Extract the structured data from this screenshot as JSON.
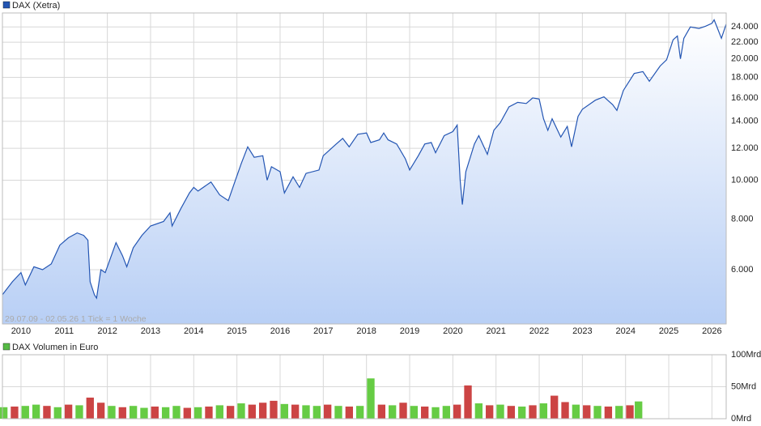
{
  "chart_data": [
    {
      "type": "line",
      "title": "DAX (Xetra)",
      "color": "#2355b3",
      "log_scale": true,
      "grid": true,
      "annotation": "29.07.09 - 02.05.26   1 Tick = 1 Woche",
      "watermark": "RIVA",
      "x": [
        2009.57,
        2009.8,
        2010.0,
        2010.1,
        2010.3,
        2010.5,
        2010.7,
        2010.9,
        2011.1,
        2011.3,
        2011.45,
        2011.55,
        2011.6,
        2011.7,
        2011.75,
        2011.85,
        2011.95,
        2012.2,
        2012.35,
        2012.45,
        2012.6,
        2012.8,
        2013.0,
        2013.3,
        2013.45,
        2013.5,
        2013.7,
        2013.9,
        2014.0,
        2014.1,
        2014.4,
        2014.6,
        2014.8,
        2014.95,
        2015.1,
        2015.25,
        2015.4,
        2015.6,
        2015.7,
        2015.8,
        2016.0,
        2016.1,
        2016.3,
        2016.45,
        2016.6,
        2016.9,
        2017.0,
        2017.3,
        2017.45,
        2017.6,
        2017.8,
        2018.0,
        2018.1,
        2018.3,
        2018.4,
        2018.5,
        2018.7,
        2018.9,
        2019.0,
        2019.2,
        2019.35,
        2019.5,
        2019.6,
        2019.8,
        2020.0,
        2020.1,
        2020.17,
        2020.22,
        2020.3,
        2020.5,
        2020.6,
        2020.8,
        2020.95,
        2021.1,
        2021.3,
        2021.5,
        2021.7,
        2021.85,
        2022.0,
        2022.1,
        2022.2,
        2022.3,
        2022.5,
        2022.65,
        2022.75,
        2022.9,
        2023.0,
        2023.3,
        2023.5,
        2023.7,
        2023.8,
        2023.95,
        2024.2,
        2024.4,
        2024.55,
        2024.8,
        2024.95,
        2025.1,
        2025.2,
        2025.27,
        2025.35,
        2025.5,
        2025.7,
        2025.85,
        2026.0,
        2026.05,
        2026.15,
        2026.22,
        2026.33
      ],
      "values": [
        5200,
        5600,
        5900,
        5500,
        6100,
        6000,
        6200,
        6900,
        7200,
        7400,
        7300,
        7100,
        5600,
        5200,
        5100,
        6000,
        5900,
        7000,
        6500,
        6100,
        6800,
        7300,
        7700,
        7900,
        8300,
        7700,
        8500,
        9300,
        9600,
        9400,
        9900,
        9200,
        8900,
        9900,
        11000,
        12100,
        11400,
        11500,
        10000,
        10800,
        10500,
        9300,
        10200,
        9600,
        10400,
        10600,
        11500,
        12300,
        12700,
        12100,
        13000,
        13100,
        12400,
        12600,
        13100,
        12600,
        12300,
        11300,
        10600,
        11500,
        12300,
        12400,
        11700,
        12900,
        13200,
        13700,
        10000,
        8700,
        10500,
        12300,
        12900,
        11600,
        13300,
        13900,
        15200,
        15600,
        15500,
        16000,
        15900,
        14200,
        13300,
        14200,
        12800,
        13600,
        12100,
        14400,
        15000,
        15800,
        16100,
        15400,
        14900,
        16700,
        18400,
        18600,
        17600,
        19200,
        19900,
        22300,
        22800,
        20000,
        22500,
        24000,
        23800,
        24100,
        24500,
        25000,
        23500,
        22500,
        24400
      ],
      "xlim": [
        2009.57,
        2026.33
      ],
      "xticks": [
        2010,
        2011,
        2012,
        2013,
        2014,
        2015,
        2016,
        2017,
        2018,
        2019,
        2020,
        2021,
        2022,
        2023,
        2024,
        2025,
        2026
      ],
      "ylim": [
        4400,
        26000
      ],
      "yticks": [
        {
          "value": 6000,
          "label": "6.000"
        },
        {
          "value": 8000,
          "label": "8.000"
        },
        {
          "value": 10000,
          "label": "10.000"
        },
        {
          "value": 12000,
          "label": "12.000"
        },
        {
          "value": 14000,
          "label": "14.000"
        },
        {
          "value": 16000,
          "label": "16.000"
        },
        {
          "value": 18000,
          "label": "18.000"
        },
        {
          "value": 20000,
          "label": "20.000"
        },
        {
          "value": 22000,
          "label": "22.000"
        },
        {
          "value": 24000,
          "label": "24.000"
        }
      ]
    },
    {
      "type": "bar",
      "title": "DAX Volumen in Euro",
      "color": "#55bb44",
      "grid": true,
      "x": [
        2009.6,
        2009.85,
        2010.1,
        2010.35,
        2010.6,
        2010.85,
        2011.1,
        2011.35,
        2011.6,
        2011.85,
        2012.1,
        2012.35,
        2012.6,
        2012.85,
        2013.1,
        2013.35,
        2013.6,
        2013.85,
        2014.1,
        2014.35,
        2014.6,
        2014.85,
        2015.1,
        2015.35,
        2015.6,
        2015.85,
        2016.1,
        2016.35,
        2016.6,
        2016.85,
        2017.1,
        2017.35,
        2017.6,
        2017.85,
        2018.1,
        2018.35,
        2018.6,
        2018.85,
        2019.1,
        2019.35,
        2019.6,
        2019.85,
        2020.1,
        2020.35,
        2020.6,
        2020.85,
        2021.1,
        2021.35,
        2021.6,
        2021.85,
        2022.1,
        2022.35,
        2022.6,
        2022.85,
        2023.1,
        2023.35,
        2023.6,
        2023.85,
        2024.1,
        2024.3
      ],
      "values": [
        18,
        19,
        20,
        22,
        20,
        18,
        22,
        21,
        33,
        25,
        20,
        18,
        20,
        17,
        19,
        18,
        20,
        17,
        18,
        19,
        21,
        20,
        24,
        22,
        25,
        28,
        23,
        22,
        21,
        20,
        22,
        20,
        19,
        20,
        63,
        22,
        21,
        25,
        20,
        19,
        18,
        20,
        22,
        52,
        24,
        21,
        22,
        20,
        19,
        21,
        24,
        36,
        26,
        22,
        21,
        20,
        19,
        20,
        21,
        27
      ],
      "bar_colors": [
        "#66cc44",
        "#cc4444",
        "#66cc44",
        "#66cc44",
        "#cc4444",
        "#66cc44",
        "#cc4444",
        "#66cc44",
        "#cc4444",
        "#cc4444",
        "#66cc44",
        "#cc4444",
        "#66cc44",
        "#66cc44",
        "#cc4444",
        "#66cc44",
        "#66cc44",
        "#cc4444",
        "#66cc44",
        "#cc4444",
        "#66cc44",
        "#cc4444",
        "#66cc44",
        "#cc4444",
        "#cc4444",
        "#cc4444",
        "#66cc44",
        "#cc4444",
        "#66cc44",
        "#66cc44",
        "#cc4444",
        "#66cc44",
        "#cc4444",
        "#66cc44",
        "#66cc44",
        "#cc4444",
        "#66cc44",
        "#cc4444",
        "#66cc44",
        "#cc4444",
        "#66cc44",
        "#66cc44",
        "#cc4444",
        "#cc4444",
        "#66cc44",
        "#cc4444",
        "#66cc44",
        "#cc4444",
        "#66cc44",
        "#cc4444",
        "#66cc44",
        "#cc4444",
        "#cc4444",
        "#66cc44",
        "#cc4444",
        "#66cc44",
        "#cc4444",
        "#66cc44",
        "#cc4444",
        "#66cc44"
      ],
      "xlim": [
        2009.57,
        2026.33
      ],
      "xticks": [
        2010,
        2011,
        2012,
        2013,
        2014,
        2015,
        2016,
        2017,
        2018,
        2019,
        2020,
        2021,
        2022,
        2023,
        2024,
        2025,
        2026
      ],
      "ylim": [
        0,
        100
      ],
      "yticks": [
        {
          "value": 0,
          "label": "0Mrd"
        },
        {
          "value": 50,
          "label": "50Mrd"
        },
        {
          "value": 100,
          "label": "100Mrd"
        }
      ]
    }
  ]
}
